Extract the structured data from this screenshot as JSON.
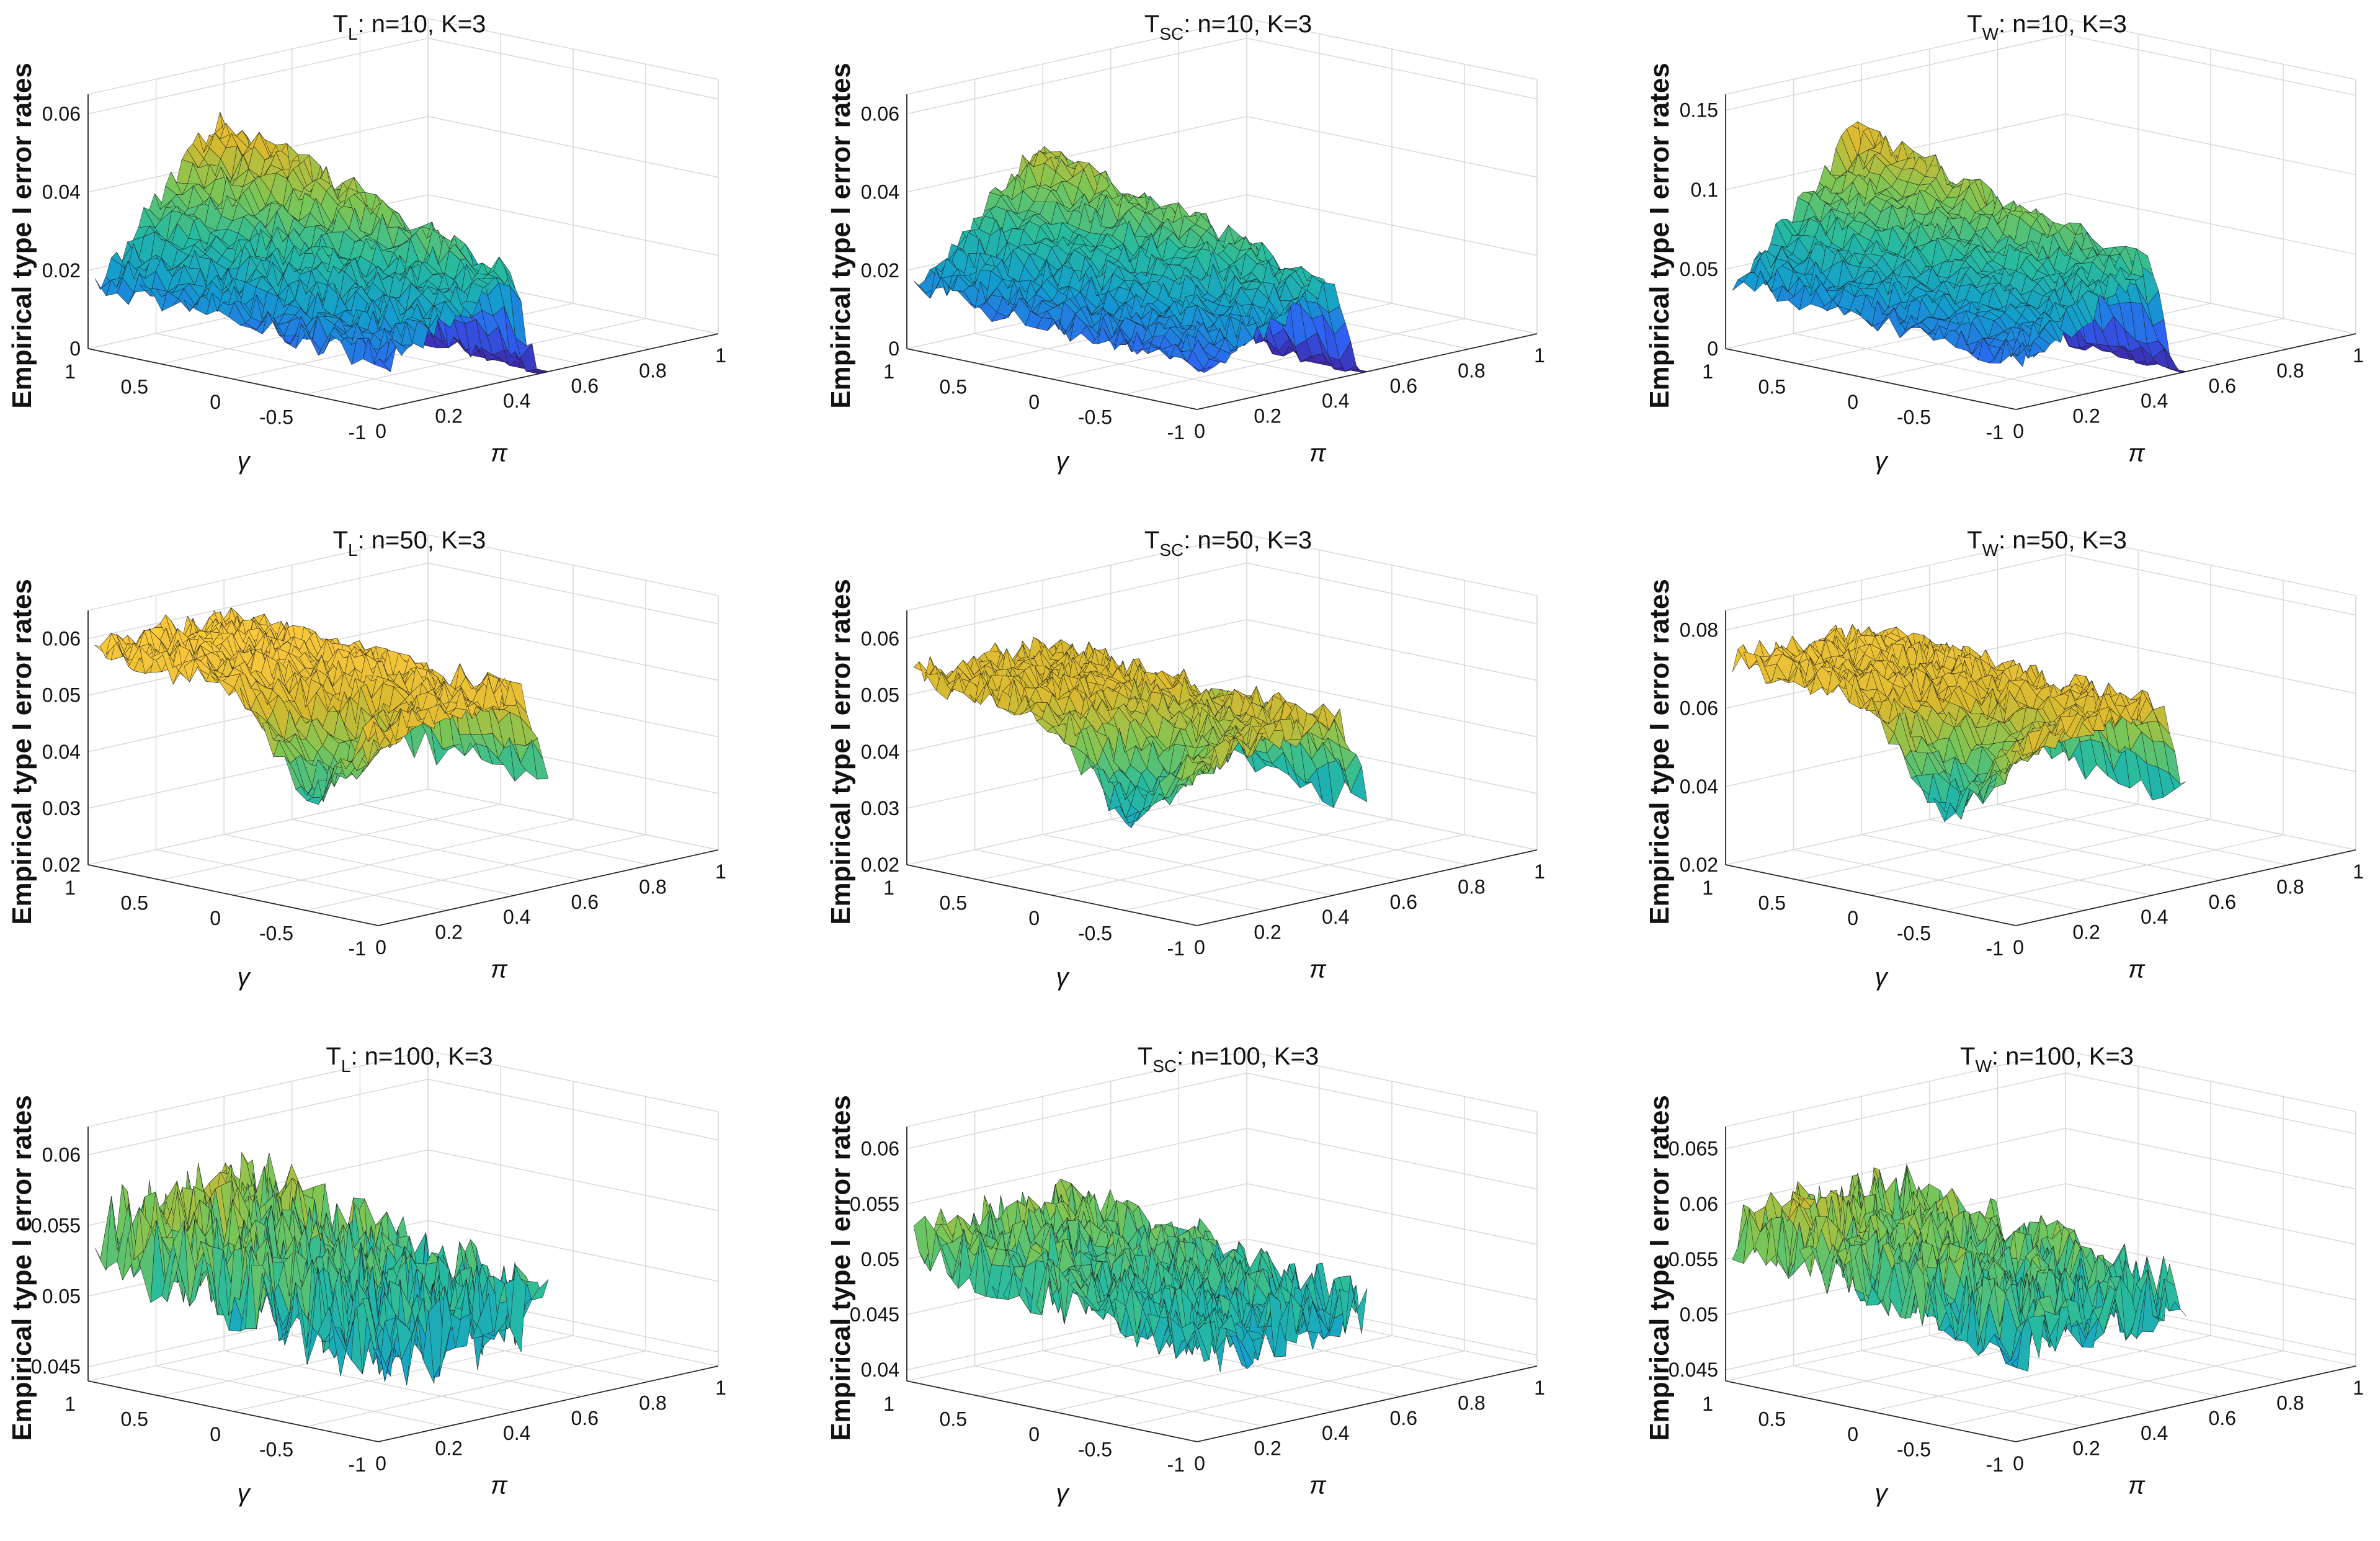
{
  "figure": {
    "grid_rows": 3,
    "grid_cols": 3
  },
  "colors": {
    "colormap": [
      "#3e26a8",
      "#2f60f4",
      "#139ece",
      "#27bb9f",
      "#7ac656",
      "#d7b92f",
      "#f8c63b",
      "#f9fb15"
    ],
    "edge": "#1a1a1a",
    "grid": "#d6d6d6",
    "axis": "#2a2a2a"
  },
  "chart_data": [
    {
      "type": "surface",
      "title_main": "T",
      "title_sub": "L",
      "title_rest": ": n=10, K=3",
      "zlabel": "Empirical type I error rates",
      "xlabel": "π",
      "ylabel": "γ",
      "x_ticks": [
        "0",
        "0.2",
        "0.4",
        "0.6",
        "0.8",
        "1"
      ],
      "y_ticks": [
        "1",
        "0.5",
        "0",
        "-0.5",
        "-1"
      ],
      "z_ticks": [
        "0",
        "0.02",
        "0.04",
        "0.06"
      ],
      "z_tick_values": [
        0,
        0.02,
        0.04,
        0.06
      ],
      "zlim": [
        0,
        0.065
      ],
      "surface": {
        "shape": "hump",
        "base": 0.0,
        "peak": 0.045,
        "peak_pi": 0.38,
        "spread": 0.12,
        "gamma_slope": 0.012,
        "noise": 0.004,
        "seed": 11
      }
    },
    {
      "type": "surface",
      "title_main": "T",
      "title_sub": "SC",
      "title_rest": ": n=10, K=3",
      "zlabel": "Empirical type I error rates",
      "xlabel": "π",
      "ylabel": "γ",
      "x_ticks": [
        "0",
        "0.2",
        "0.4",
        "0.6",
        "0.8",
        "1"
      ],
      "y_ticks": [
        "1",
        "0.5",
        "0",
        "-0.5",
        "-1"
      ],
      "z_ticks": [
        "0",
        "0.02",
        "0.04",
        "0.06"
      ],
      "z_tick_values": [
        0,
        0.02,
        0.04,
        0.06
      ],
      "zlim": [
        0,
        0.065
      ],
      "surface": {
        "shape": "hump",
        "base": 0.0,
        "peak": 0.04,
        "peak_pi": 0.38,
        "spread": 0.12,
        "gamma_slope": 0.01,
        "noise": 0.0035,
        "seed": 23
      }
    },
    {
      "type": "surface",
      "title_main": "T",
      "title_sub": "W",
      "title_rest": ": n=10, K=3",
      "zlabel": "Empirical type I error rates",
      "xlabel": "π",
      "ylabel": "γ",
      "x_ticks": [
        "0",
        "0.2",
        "0.4",
        "0.6",
        "0.8",
        "1"
      ],
      "y_ticks": [
        "1",
        "0.5",
        "0",
        "-0.5",
        "-1"
      ],
      "z_ticks": [
        "0",
        "0.05",
        "0.1",
        "0.15"
      ],
      "z_tick_values": [
        0,
        0.05,
        0.1,
        0.15
      ],
      "zlim": [
        0,
        0.16
      ],
      "surface": {
        "shape": "hump",
        "base": 0.0,
        "peak": 0.11,
        "peak_pi": 0.38,
        "spread": 0.12,
        "gamma_slope": 0.02,
        "noise": 0.008,
        "seed": 37
      }
    },
    {
      "type": "surface",
      "title_main": "T",
      "title_sub": "L",
      "title_rest": ": n=50, K=3",
      "zlabel": "Empirical type I error rates",
      "xlabel": "π",
      "ylabel": "γ",
      "x_ticks": [
        "0",
        "0.2",
        "0.4",
        "0.6",
        "0.8",
        "1"
      ],
      "y_ticks": [
        "1",
        "0.5",
        "0",
        "-0.5",
        "-1"
      ],
      "z_ticks": [
        "0.02",
        "0.03",
        "0.04",
        "0.05",
        "0.06"
      ],
      "z_tick_values": [
        0.02,
        0.03,
        0.04,
        0.05,
        0.06
      ],
      "zlim": [
        0.02,
        0.065
      ],
      "surface": {
        "shape": "plateau",
        "base": 0.028,
        "peak": 0.057,
        "peak_pi": 0.4,
        "spread": 0.1,
        "gamma_slope": 0.004,
        "noise": 0.003,
        "seed": 41
      }
    },
    {
      "type": "surface",
      "title_main": "T",
      "title_sub": "SC",
      "title_rest": ": n=50, K=3",
      "zlabel": "Empirical type I error rates",
      "xlabel": "π",
      "ylabel": "γ",
      "x_ticks": [
        "0",
        "0.2",
        "0.4",
        "0.6",
        "0.8",
        "1"
      ],
      "y_ticks": [
        "1",
        "0.5",
        "0",
        "-0.5",
        "-1"
      ],
      "z_ticks": [
        "0.02",
        "0.03",
        "0.04",
        "0.05",
        "0.06"
      ],
      "z_tick_values": [
        0.02,
        0.03,
        0.04,
        0.05,
        0.06
      ],
      "zlim": [
        0.02,
        0.065
      ],
      "surface": {
        "shape": "plateau",
        "base": 0.025,
        "peak": 0.052,
        "peak_pi": 0.4,
        "spread": 0.1,
        "gamma_slope": 0.004,
        "noise": 0.003,
        "seed": 53
      }
    },
    {
      "type": "surface",
      "title_main": "T",
      "title_sub": "W",
      "title_rest": ": n=50, K=3",
      "zlabel": "Empirical type I error rates",
      "xlabel": "π",
      "ylabel": "γ",
      "x_ticks": [
        "0",
        "0.2",
        "0.4",
        "0.6",
        "0.8",
        "1"
      ],
      "y_ticks": [
        "1",
        "0.5",
        "0",
        "-0.5",
        "-1"
      ],
      "z_ticks": [
        "0.02",
        "0.04",
        "0.06",
        "0.08"
      ],
      "z_tick_values": [
        0.02,
        0.04,
        0.06,
        0.08
      ],
      "zlim": [
        0.02,
        0.085
      ],
      "surface": {
        "shape": "plateau",
        "base": 0.027,
        "peak": 0.07,
        "peak_pi": 0.4,
        "spread": 0.1,
        "gamma_slope": 0.006,
        "noise": 0.004,
        "seed": 67
      }
    },
    {
      "type": "surface",
      "title_main": "T",
      "title_sub": "L",
      "title_rest": ": n=100, K=3",
      "zlabel": "Empirical type I error rates",
      "xlabel": "π",
      "ylabel": "γ",
      "x_ticks": [
        "0",
        "0.2",
        "0.4",
        "0.6",
        "0.8",
        "1"
      ],
      "y_ticks": [
        "1",
        "0.5",
        "0",
        "-0.5",
        "-1"
      ],
      "z_ticks": [
        "0.045",
        "0.05",
        "0.055",
        "0.06"
      ],
      "z_tick_values": [
        0.045,
        0.05,
        0.055,
        0.06
      ],
      "zlim": [
        0.044,
        0.062
      ],
      "surface": {
        "shape": "flat",
        "base": 0.049,
        "peak": 0.056,
        "peak_pi": 0.45,
        "spread": 0.2,
        "gamma_slope": 0.002,
        "noise": 0.0035,
        "seed": 79
      }
    },
    {
      "type": "surface",
      "title_main": "T",
      "title_sub": "SC",
      "title_rest": ": n=100, K=3",
      "zlabel": "Empirical type I error rates",
      "xlabel": "π",
      "ylabel": "γ",
      "x_ticks": [
        "0",
        "0.2",
        "0.4",
        "0.6",
        "0.8",
        "1"
      ],
      "y_ticks": [
        "1",
        "0.5",
        "0",
        "-0.5",
        "-1"
      ],
      "z_ticks": [
        "0.04",
        "0.045",
        "0.05",
        "0.055",
        "0.06"
      ],
      "z_tick_values": [
        0.04,
        0.045,
        0.05,
        0.055,
        0.06
      ],
      "zlim": [
        0.039,
        0.062
      ],
      "surface": {
        "shape": "flat",
        "base": 0.047,
        "peak": 0.052,
        "peak_pi": 0.45,
        "spread": 0.2,
        "gamma_slope": 0.002,
        "noise": 0.003,
        "seed": 83
      }
    },
    {
      "type": "surface",
      "title_main": "T",
      "title_sub": "W",
      "title_rest": ": n=100, K=3",
      "zlabel": "Empirical type I error rates",
      "xlabel": "π",
      "ylabel": "γ",
      "x_ticks": [
        "0",
        "0.2",
        "0.4",
        "0.6",
        "0.8",
        "1"
      ],
      "y_ticks": [
        "1",
        "0.5",
        "0",
        "-0.5",
        "-1"
      ],
      "z_ticks": [
        "0.045",
        "0.05",
        "0.055",
        "0.06",
        "0.065"
      ],
      "z_tick_values": [
        0.045,
        0.05,
        0.055,
        0.06,
        0.065
      ],
      "zlim": [
        0.044,
        0.067
      ],
      "surface": {
        "shape": "flat",
        "base": 0.052,
        "peak": 0.059,
        "peak_pi": 0.45,
        "spread": 0.2,
        "gamma_slope": 0.002,
        "noise": 0.0035,
        "seed": 97
      }
    }
  ]
}
